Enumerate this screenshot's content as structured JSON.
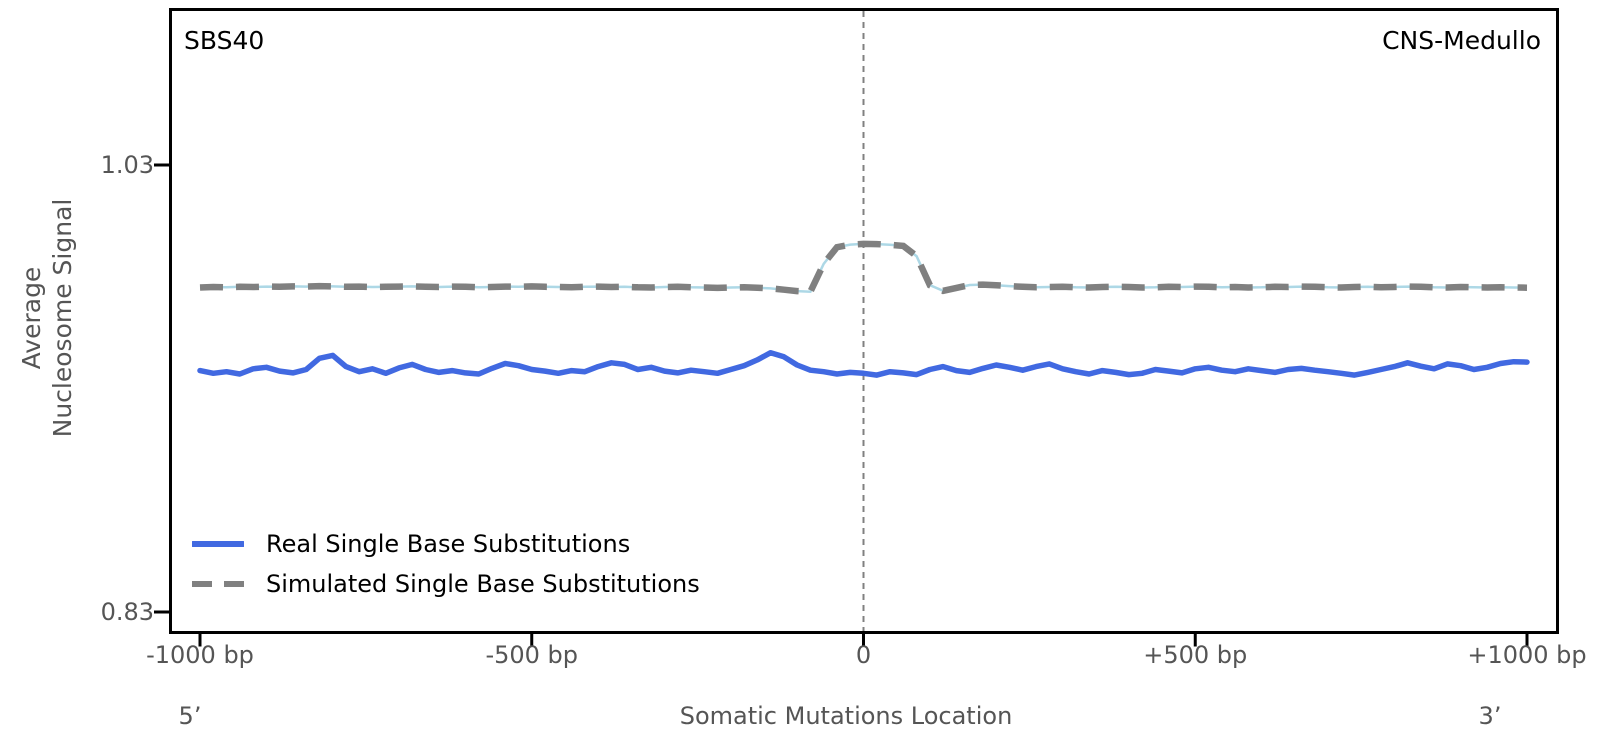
{
  "figure": {
    "signature_label": "SBS40",
    "cancer_type_label": "CNS-Medullo"
  },
  "axes": {
    "y_label_line1": "Average",
    "y_label_line2": "Nucleosome Signal",
    "y_tick_top": "1.03",
    "y_tick_bottom": "0.83",
    "x_tick_labels": [
      "-1000 bp",
      "-500 bp",
      "0",
      "+500 bp",
      "+1000 bp"
    ],
    "x_label": "Somatic Mutations Location",
    "five_prime": "5’",
    "three_prime": "3’"
  },
  "legend": {
    "items": [
      {
        "label": "Real Single Base Substitutions",
        "color": "#4169E1",
        "style": "solid"
      },
      {
        "label": "Simulated Single Base Substitutions",
        "color": "#808080",
        "style": "dashed"
      }
    ]
  },
  "colors": {
    "real_line": "#4169E1",
    "simulated_line": "#808080",
    "simulated_underlay": "#ADD8E6",
    "zero_line": "#808080",
    "axis_border": "#000000",
    "tick_text": "#555555",
    "title_text": "#000000"
  },
  "chart_data": {
    "type": "line",
    "title": "SBS40",
    "annotation_right": "CNS-Medullo",
    "xlabel": "Somatic Mutations Location",
    "ylabel": "Average Nucleosome Signal",
    "xlim": [
      -1000,
      1000
    ],
    "ylim": [
      0.83,
      1.03
    ],
    "xticks": [
      -1000,
      -500,
      0,
      500,
      1000
    ],
    "yticks": [
      1.03,
      0.83
    ],
    "vline_x": 0,
    "grid": false,
    "legend_position": "lower left",
    "x": [
      -1000,
      -980,
      -960,
      -940,
      -920,
      -900,
      -880,
      -860,
      -840,
      -820,
      -800,
      -780,
      -760,
      -740,
      -720,
      -700,
      -680,
      -660,
      -640,
      -620,
      -600,
      -580,
      -560,
      -540,
      -520,
      -500,
      -480,
      -460,
      -440,
      -420,
      -400,
      -380,
      -360,
      -340,
      -320,
      -300,
      -280,
      -260,
      -240,
      -220,
      -200,
      -180,
      -160,
      -140,
      -120,
      -100,
      -80,
      -60,
      -40,
      -20,
      0,
      20,
      40,
      60,
      80,
      100,
      120,
      140,
      160,
      180,
      200,
      220,
      240,
      260,
      280,
      300,
      320,
      340,
      360,
      380,
      400,
      420,
      440,
      460,
      480,
      500,
      520,
      540,
      560,
      580,
      600,
      620,
      640,
      660,
      680,
      700,
      720,
      740,
      760,
      780,
      800,
      820,
      840,
      860,
      880,
      900,
      920,
      940,
      960,
      980,
      1000
    ],
    "series": [
      {
        "name": "Real Single Base Substitutions",
        "color": "#4169E1",
        "style": "solid",
        "values": [
          0.938,
          0.9368,
          0.9375,
          0.9365,
          0.9388,
          0.9395,
          0.9378,
          0.937,
          0.9385,
          0.9435,
          0.9448,
          0.9398,
          0.9375,
          0.9388,
          0.9368,
          0.9392,
          0.9408,
          0.9385,
          0.9372,
          0.938,
          0.937,
          0.9365,
          0.939,
          0.9412,
          0.9402,
          0.9385,
          0.9378,
          0.9368,
          0.938,
          0.9375,
          0.9398,
          0.9415,
          0.9408,
          0.9385,
          0.9395,
          0.9378,
          0.937,
          0.9382,
          0.9375,
          0.9368,
          0.9385,
          0.9402,
          0.9428,
          0.946,
          0.9442,
          0.9405,
          0.9382,
          0.9375,
          0.9365,
          0.9372,
          0.9368,
          0.936,
          0.9375,
          0.937,
          0.9362,
          0.9385,
          0.9398,
          0.938,
          0.9372,
          0.939,
          0.9405,
          0.9395,
          0.9382,
          0.9398,
          0.941,
          0.9388,
          0.9375,
          0.9365,
          0.938,
          0.9372,
          0.9362,
          0.9368,
          0.9385,
          0.9378,
          0.937,
          0.9388,
          0.9395,
          0.9382,
          0.9375,
          0.9388,
          0.938,
          0.9372,
          0.9385,
          0.939,
          0.9382,
          0.9375,
          0.9368,
          0.936,
          0.9372,
          0.9385,
          0.9398,
          0.9415,
          0.94,
          0.9388,
          0.941,
          0.9402,
          0.9385,
          0.9395,
          0.9412,
          0.942,
          0.9418
        ]
      },
      {
        "name": "Simulated Single Base Substitutions",
        "color": "#808080",
        "style": "dashed",
        "underlay_color": "#ADD8E6",
        "values": [
          0.9752,
          0.9754,
          0.9753,
          0.9755,
          0.9754,
          0.9756,
          0.9755,
          0.9757,
          0.9756,
          0.9758,
          0.9757,
          0.9755,
          0.9756,
          0.9754,
          0.9755,
          0.9756,
          0.9757,
          0.9755,
          0.9754,
          0.9756,
          0.9755,
          0.9753,
          0.9754,
          0.9756,
          0.9755,
          0.9757,
          0.9755,
          0.9754,
          0.9753,
          0.9755,
          0.9756,
          0.9754,
          0.9755,
          0.9753,
          0.9752,
          0.9754,
          0.9755,
          0.9753,
          0.9752,
          0.975,
          0.9752,
          0.9753,
          0.9751,
          0.9748,
          0.9742,
          0.9736,
          0.9733,
          0.9858,
          0.9932,
          0.9944,
          0.9947,
          0.9946,
          0.9943,
          0.9938,
          0.9892,
          0.9762,
          0.9737,
          0.975,
          0.9763,
          0.9765,
          0.9762,
          0.9758,
          0.9755,
          0.9753,
          0.9754,
          0.9755,
          0.9753,
          0.9752,
          0.9754,
          0.9755,
          0.9754,
          0.9752,
          0.9753,
          0.9755,
          0.9754,
          0.9756,
          0.9755,
          0.9753,
          0.9754,
          0.9752,
          0.9753,
          0.9755,
          0.9754,
          0.9756,
          0.9755,
          0.9753,
          0.9752,
          0.9754,
          0.9755,
          0.9753,
          0.9754,
          0.9756,
          0.9755,
          0.9753,
          0.9752,
          0.9754,
          0.9753,
          0.9752,
          0.9753,
          0.9752,
          0.9751
        ]
      }
    ]
  }
}
